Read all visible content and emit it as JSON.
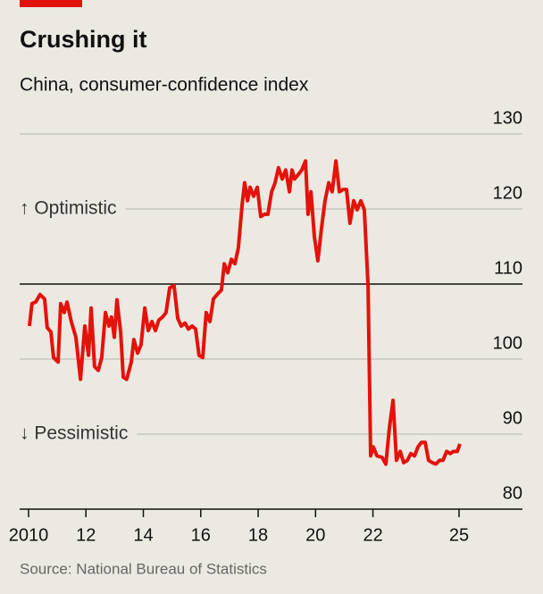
{
  "chart_data": {
    "type": "line",
    "title": "Crushing it",
    "subtitle": "China, consumer-confidence index",
    "source": "Source: National Bureau of Statistics",
    "annotations": [
      "↑ Optimistic",
      "↓ Pessimistic"
    ],
    "reference_line": 110,
    "grid": true,
    "xlim": [
      2009.69,
      2027.21
    ],
    "ylim": [
      80,
      130
    ],
    "yticks": [
      80,
      90,
      100,
      110,
      120,
      130
    ],
    "xticks": [
      2010,
      {
        "value": 2012,
        "label": "12"
      },
      {
        "value": 2014,
        "label": "14"
      },
      {
        "value": 2016,
        "label": "16"
      },
      {
        "value": 2018,
        "label": "18"
      },
      {
        "value": 2020,
        "label": "20"
      },
      {
        "value": 2022,
        "label": "22"
      },
      {
        "value": 2025,
        "label": "25"
      }
    ],
    "x": [
      2010.03,
      2010.12,
      2010.25,
      2010.4,
      2010.56,
      2010.65,
      2010.78,
      2010.87,
      2011.03,
      2011.12,
      2011.24,
      2011.34,
      2011.49,
      2011.65,
      2011.81,
      2011.96,
      2012.09,
      2012.18,
      2012.3,
      2012.43,
      2012.55,
      2012.68,
      2012.8,
      2012.89,
      2012.99,
      2013.08,
      2013.21,
      2013.3,
      2013.42,
      2013.58,
      2013.67,
      2013.8,
      2013.92,
      2014.05,
      2014.17,
      2014.3,
      2014.42,
      2014.54,
      2014.67,
      2014.79,
      2014.92,
      2015.07,
      2015.2,
      2015.32,
      2015.45,
      2015.57,
      2015.7,
      2015.82,
      2015.94,
      2016.07,
      2016.19,
      2016.32,
      2016.44,
      2016.57,
      2016.72,
      2016.82,
      2016.94,
      2017.07,
      2017.19,
      2017.31,
      2017.44,
      2017.53,
      2017.63,
      2017.72,
      2017.84,
      2017.97,
      2018.09,
      2018.22,
      2018.34,
      2018.47,
      2018.59,
      2018.71,
      2018.84,
      2018.96,
      2019.09,
      2019.18,
      2019.27,
      2019.4,
      2019.52,
      2019.65,
      2019.74,
      2019.84,
      2019.96,
      2020.08,
      2020.21,
      2020.33,
      2020.46,
      2020.58,
      2020.71,
      2020.83,
      2020.96,
      2021.08,
      2021.2,
      2021.33,
      2021.45,
      2021.58,
      2021.7,
      2021.83,
      2021.92,
      2022.01,
      2022.14,
      2022.32,
      2022.45,
      2022.57,
      2022.7,
      2022.82,
      2022.95,
      2023.07,
      2023.2,
      2023.32,
      2023.45,
      2023.57,
      2023.69,
      2023.82,
      2023.94,
      2024.07,
      2024.19,
      2024.32,
      2024.44,
      2024.57,
      2024.69,
      2024.81,
      2024.94,
      2025.03
    ],
    "series": [
      {
        "color": "#e3120b",
        "values": [
          104.4,
          107.4,
          107.6,
          108.6,
          108,
          104.2,
          103.6,
          100.2,
          99.6,
          107.4,
          106.2,
          107.6,
          105,
          102.9,
          97.3,
          104.4,
          100.5,
          106.8,
          99,
          98.5,
          100.2,
          106.2,
          104.4,
          105.6,
          102.9,
          107.9,
          103.6,
          97.6,
          97.3,
          99.6,
          102.6,
          100.8,
          101.9,
          106.8,
          103.8,
          105,
          103.8,
          105.2,
          105.6,
          106.2,
          109.5,
          109.8,
          105.4,
          104.4,
          104.8,
          104,
          104.4,
          104,
          100.5,
          100.2,
          106.2,
          105,
          108,
          108.6,
          109.2,
          112.7,
          111.5,
          113.3,
          112.7,
          114.8,
          120.5,
          123.5,
          121.1,
          122.9,
          121.7,
          122.9,
          119,
          119.3,
          119.3,
          122.3,
          123.5,
          125.5,
          124,
          125.2,
          122.3,
          125.2,
          124,
          124.6,
          125.2,
          126.4,
          119.3,
          122.3,
          116.3,
          113.1,
          117.5,
          121.1,
          123.5,
          122.3,
          126.4,
          122.3,
          122.6,
          122.6,
          118.1,
          121.1,
          119.9,
          121.1,
          119.9,
          109.8,
          87.1,
          88.3,
          87.1,
          86.9,
          86,
          90.7,
          94.5,
          86.5,
          87.7,
          86.2,
          86.5,
          87.4,
          87.1,
          88.3,
          88.9,
          88.9,
          86.5,
          86.2,
          86,
          86.5,
          86.5,
          87.7,
          87.4,
          87.7,
          87.7,
          88.7
        ]
      }
    ]
  }
}
